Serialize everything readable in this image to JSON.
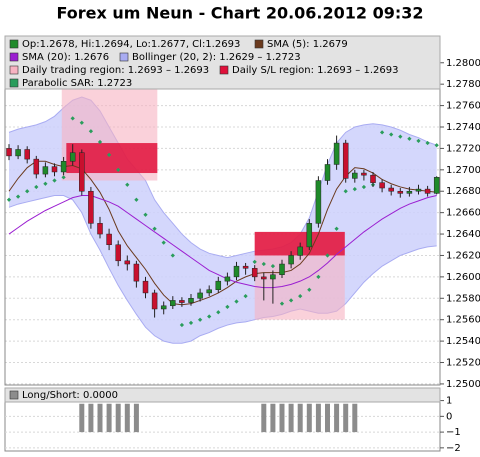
{
  "chart_data": [
    {
      "type": "candlestick",
      "title": "Forex um Neun - Chart 20.06.2012 09:32",
      "ylim": [
        1.2499,
        1.2825
      ],
      "yticks": [
        {
          "value": 1.25,
          "label": "1.2500"
        },
        {
          "value": 1.252,
          "label": "1.2520"
        },
        {
          "value": 1.254,
          "label": "1.2540"
        },
        {
          "value": 1.256,
          "label": "1.2560"
        },
        {
          "value": 1.258,
          "label": "1.2580"
        },
        {
          "value": 1.26,
          "label": "1.2600"
        },
        {
          "value": 1.262,
          "label": "1.2620"
        },
        {
          "value": 1.264,
          "label": "1.2640"
        },
        {
          "value": 1.266,
          "label": "1.2660"
        },
        {
          "value": 1.268,
          "label": "1.2680"
        },
        {
          "value": 1.27,
          "label": "1.2700"
        },
        {
          "value": 1.272,
          "label": "1.2720"
        },
        {
          "value": 1.274,
          "label": "1.2740"
        },
        {
          "value": 1.276,
          "label": "1.2760"
        },
        {
          "value": 1.278,
          "label": "1.2780"
        },
        {
          "value": 1.28,
          "label": "1.2800"
        }
      ],
      "grid": true,
      "series": [
        {
          "name": "Op:1.2678, Hi:1.2694, Lo:1.2677, Cl:1.2693",
          "kind": "candles",
          "color": "#1f8a2a",
          "down_color": "#c8102e",
          "open": [
            1.272,
            1.2713,
            1.2719,
            1.271,
            1.2696,
            1.2703,
            1.2698,
            1.2708,
            1.2716,
            1.268,
            1.265,
            1.264,
            1.263,
            1.2615,
            1.2612,
            1.2596,
            1.2585,
            1.257,
            1.2573,
            1.2578,
            1.2576,
            1.258,
            1.2585,
            1.2588,
            1.2596,
            1.26,
            1.261,
            1.2608,
            1.26,
            1.2598,
            1.2602,
            1.2612,
            1.262,
            1.2628,
            1.265,
            1.269,
            1.2705,
            1.2725,
            1.2692,
            1.2697,
            1.2695,
            1.2688,
            1.2683,
            1.268,
            1.2678,
            1.268,
            1.2682,
            1.2678
          ],
          "high": [
            1.2724,
            1.2723,
            1.2722,
            1.2713,
            1.2707,
            1.2706,
            1.2712,
            1.2724,
            1.2719,
            1.2684,
            1.2656,
            1.2645,
            1.2634,
            1.262,
            1.2615,
            1.26,
            1.2588,
            1.2577,
            1.2582,
            1.2581,
            1.2584,
            1.2589,
            1.2592,
            1.26,
            1.2604,
            1.2614,
            1.2613,
            1.2611,
            1.2604,
            1.2606,
            1.2616,
            1.2624,
            1.2632,
            1.2654,
            1.2694,
            1.271,
            1.2732,
            1.2728,
            1.27,
            1.27,
            1.2698,
            1.2691,
            1.2686,
            1.2683,
            1.2684,
            1.2686,
            1.2685,
            1.2694
          ],
          "low": [
            1.2709,
            1.271,
            1.2706,
            1.2692,
            1.2693,
            1.2694,
            1.2695,
            1.2704,
            1.2676,
            1.2645,
            1.2636,
            1.2625,
            1.261,
            1.2606,
            1.259,
            1.258,
            1.2562,
            1.2565,
            1.257,
            1.2572,
            1.2573,
            1.2577,
            1.2582,
            1.2585,
            1.2592,
            1.2597,
            1.2602,
            1.2596,
            1.2578,
            1.2575,
            1.2599,
            1.2608,
            1.2616,
            1.2625,
            1.2646,
            1.2686,
            1.27,
            1.2688,
            1.2688,
            1.269,
            1.2684,
            1.2679,
            1.2676,
            1.2674,
            1.2675,
            1.2677,
            1.2675,
            1.2677
          ],
          "close": [
            1.2713,
            1.2719,
            1.271,
            1.2696,
            1.2703,
            1.2698,
            1.2708,
            1.2716,
            1.268,
            1.265,
            1.264,
            1.263,
            1.2615,
            1.2612,
            1.2596,
            1.2585,
            1.257,
            1.2573,
            1.2578,
            1.2576,
            1.258,
            1.2585,
            1.2588,
            1.2596,
            1.26,
            1.261,
            1.2608,
            1.26,
            1.2598,
            1.2602,
            1.2612,
            1.262,
            1.2628,
            1.265,
            1.269,
            1.2705,
            1.2725,
            1.2692,
            1.2697,
            1.2695,
            1.2688,
            1.2683,
            1.268,
            1.2678,
            1.268,
            1.2682,
            1.2678,
            1.2693
          ]
        },
        {
          "name": "SMA (5): 1.2679",
          "kind": "line",
          "color": "#6b3a1e",
          "values": [
            1.268,
            1.2692,
            1.2702,
            1.2708,
            1.2708,
            1.2705,
            1.2703,
            1.2704,
            1.2701,
            1.2691,
            1.2679,
            1.2663,
            1.2643,
            1.2629,
            1.2618,
            1.2607,
            1.2594,
            1.2583,
            1.2575,
            1.2574,
            1.2575,
            1.2578,
            1.2581,
            1.2585,
            1.259,
            1.2596,
            1.26,
            1.2603,
            1.2604,
            1.2604,
            1.2604,
            1.2606,
            1.2612,
            1.2622,
            1.264,
            1.2663,
            1.2682,
            1.2694,
            1.2702,
            1.2701,
            1.2697,
            1.2691,
            1.2687,
            1.2684,
            1.2682,
            1.2681,
            1.268,
            1.2679
          ]
        },
        {
          "name": "SMA (20): 1.2676",
          "kind": "line",
          "color": "#9b1fd1",
          "values": [
            1.264,
            1.2646,
            1.2652,
            1.2657,
            1.2662,
            1.2666,
            1.267,
            1.2674,
            1.2676,
            1.2676,
            1.2673,
            1.267,
            1.2666,
            1.266,
            1.2654,
            1.2648,
            1.2642,
            1.2636,
            1.263,
            1.2624,
            1.2618,
            1.2612,
            1.2606,
            1.2602,
            1.2598,
            1.2595,
            1.2593,
            1.2591,
            1.259,
            1.259,
            1.2591,
            1.2593,
            1.2596,
            1.26,
            1.2606,
            1.2613,
            1.2621,
            1.2628,
            1.2635,
            1.2642,
            1.2648,
            1.2654,
            1.2659,
            1.2664,
            1.2668,
            1.2671,
            1.2674,
            1.2676
          ]
        },
        {
          "name": "Bollinger (20, 2): 1.2629 – 1.2723",
          "kind": "band",
          "color": "#a9acf2",
          "upper": [
            1.2735,
            1.2738,
            1.274,
            1.2742,
            1.2745,
            1.275,
            1.2758,
            1.2765,
            1.2768,
            1.2765,
            1.2755,
            1.274,
            1.2725,
            1.271,
            1.27,
            1.269,
            1.2672,
            1.266,
            1.265,
            1.264,
            1.2632,
            1.2626,
            1.2622,
            1.262,
            1.2618,
            1.262,
            1.2622,
            1.2624,
            1.2625,
            1.2626,
            1.2628,
            1.2632,
            1.264,
            1.2655,
            1.268,
            1.2705,
            1.2725,
            1.2735,
            1.274,
            1.2742,
            1.2743,
            1.2742,
            1.274,
            1.2737,
            1.2733,
            1.273,
            1.2726,
            1.2723
          ],
          "lower": [
            1.2665,
            1.2668,
            1.267,
            1.2672,
            1.2674,
            1.2676,
            1.2676,
            1.2672,
            1.266,
            1.264,
            1.2625,
            1.2608,
            1.2592,
            1.2578,
            1.2565,
            1.2553,
            1.2545,
            1.254,
            1.2538,
            1.2538,
            1.254,
            1.2545,
            1.2548,
            1.2552,
            1.2555,
            1.2557,
            1.2558,
            1.256,
            1.2562,
            1.2563,
            1.2565,
            1.2568,
            1.257,
            1.2568,
            1.2566,
            1.2566,
            1.2568,
            1.2575,
            1.2585,
            1.2595,
            1.2603,
            1.261,
            1.2615,
            1.262,
            1.2623,
            1.2626,
            1.2628,
            1.2629
          ]
        },
        {
          "name": "Daily trading region: 1.2693 – 1.2693",
          "kind": "region",
          "color": "#f7b3c2",
          "regions": [
            {
              "from": 5.8,
              "to": 16.3,
              "low": 1.269,
              "high": 1.28
            },
            {
              "from": 27.0,
              "to": 36.9,
              "low": 1.256,
              "high": 1.2642
            }
          ]
        },
        {
          "name": "Daily S/L region: 1.2693 – 1.2693",
          "kind": "region",
          "color": "#e0103a",
          "regions": [
            {
              "from": 6.3,
              "to": 16.3,
              "low": 1.2697,
              "high": 1.2725
            },
            {
              "from": 27.0,
              "to": 36.9,
              "low": 1.262,
              "high": 1.2642
            }
          ]
        },
        {
          "name": "Parabolic SAR: 1.2723",
          "kind": "dots",
          "color": "#2a9d5c",
          "values": [
            1.2672,
            1.2675,
            1.268,
            1.2684,
            1.2687,
            1.269,
            1.2693,
            1.2748,
            1.2744,
            1.2736,
            1.2726,
            1.2714,
            1.27,
            1.2686,
            1.2672,
            1.2658,
            1.2645,
            1.2632,
            1.262,
            1.2555,
            1.2557,
            1.256,
            1.2563,
            1.2567,
            1.2572,
            1.2577,
            1.2582,
            1.2614,
            1.2612,
            1.261,
            1.2575,
            1.2578,
            1.2582,
            1.2588,
            1.26,
            1.262,
            1.2645,
            1.268,
            1.2682,
            1.2684,
            1.2686,
            1.2735,
            1.2733,
            1.2731,
            1.2729,
            1.2727,
            1.2725,
            1.2723
          ]
        }
      ]
    },
    {
      "type": "bar",
      "ylim": [
        -2.2,
        1.8
      ],
      "yticks": [
        1,
        0,
        {
          "value": -1,
          "label": "−1"
        },
        {
          "value": -2,
          "label": "−2"
        }
      ],
      "grid": true,
      "series": [
        {
          "name": "Long/Short: 0.0000",
          "color": "#8c8c8c",
          "values": [
            null,
            null,
            null,
            null,
            null,
            null,
            null,
            null,
            -1,
            -1,
            -1,
            -1,
            -1,
            -1,
            -1,
            null,
            null,
            null,
            null,
            null,
            null,
            null,
            null,
            null,
            null,
            null,
            null,
            null,
            -1,
            -1,
            -1,
            -1,
            -1,
            -1,
            -1,
            -1,
            -1,
            -1,
            -1,
            null,
            null,
            null,
            null,
            null,
            null,
            null,
            null,
            null
          ]
        }
      ]
    }
  ]
}
